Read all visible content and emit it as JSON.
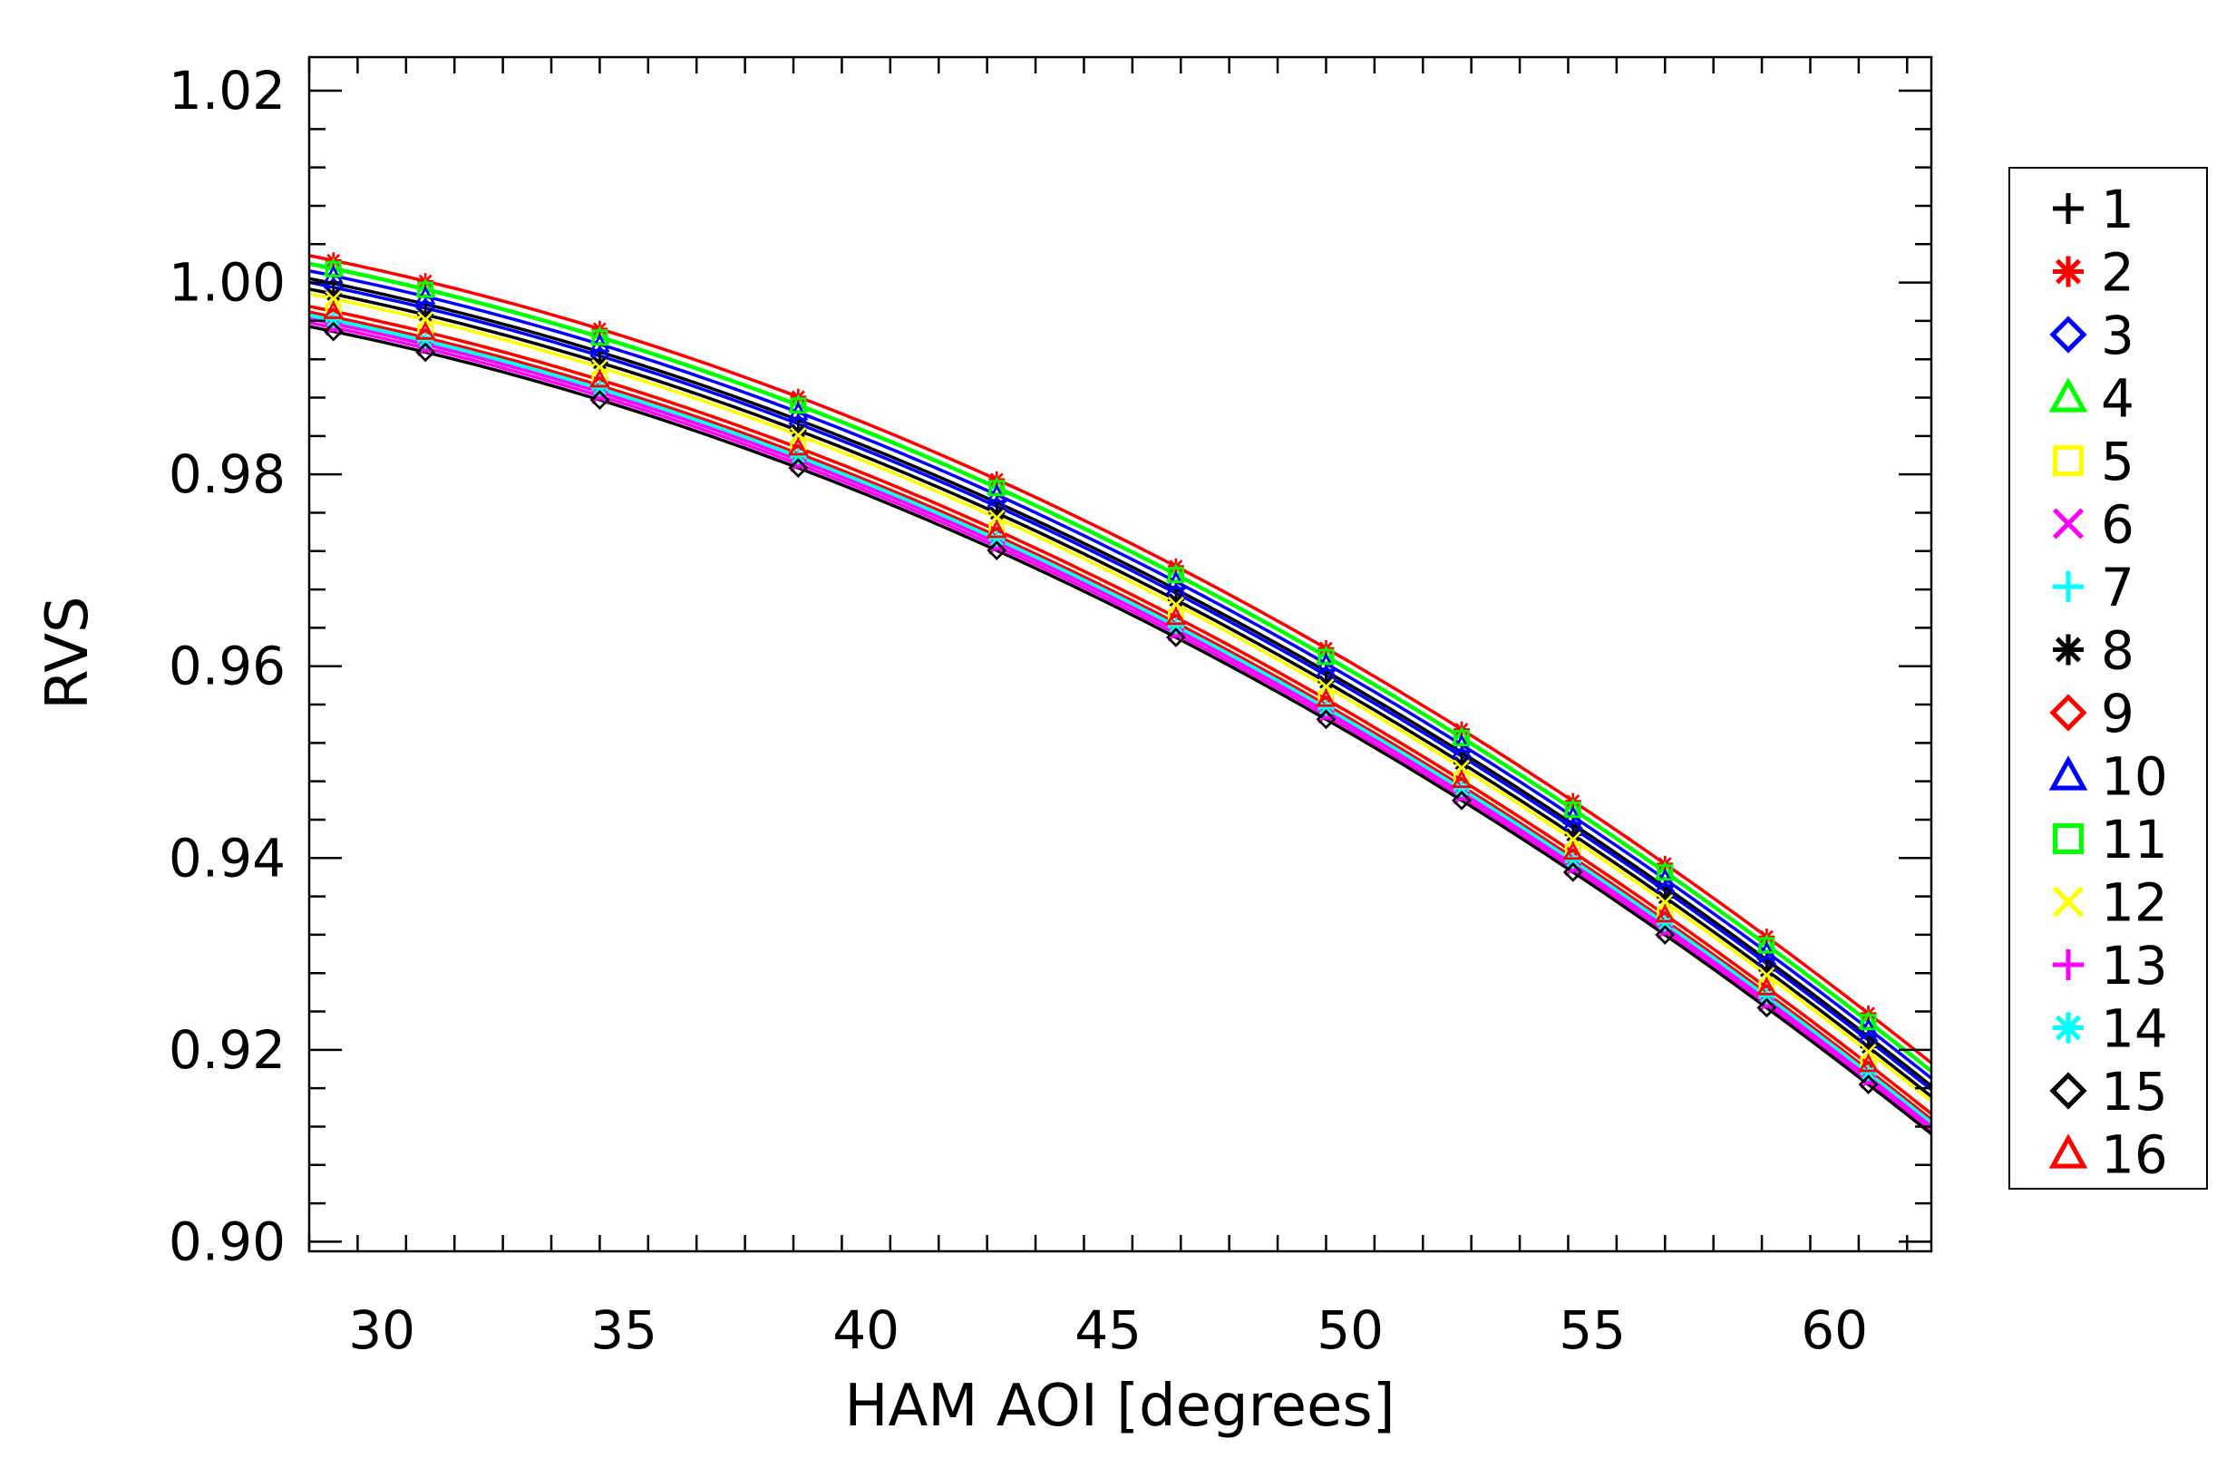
{
  "chart_data": {
    "type": "scatter",
    "title": "",
    "xlabel": "HAM AOI [degrees]",
    "ylabel": "RVS",
    "xlim": [
      28.5,
      62
    ],
    "ylim": [
      0.899,
      1.0235
    ],
    "xticks": [
      30,
      35,
      40,
      45,
      50,
      55,
      60
    ],
    "xtick_labels": [
      "30",
      "35",
      "40",
      "45",
      "50",
      "55",
      "60"
    ],
    "yticks": [
      0.9,
      0.92,
      0.94,
      0.96,
      0.98,
      1.0,
      1.02
    ],
    "ytick_labels": [
      "0.90",
      "0.92",
      "0.94",
      "0.96",
      "0.98",
      "1.00",
      "1.02"
    ],
    "legend_position": "right",
    "x": [
      29.0,
      30.9,
      34.5,
      38.6,
      42.7,
      46.4,
      49.5,
      52.3,
      54.6,
      56.5,
      58.6,
      60.7
    ],
    "series": [
      {
        "name": "1",
        "marker": "plus",
        "color": "#000000",
        "y0": 0.9999,
        "curve": "#000000"
      },
      {
        "name": "2",
        "marker": "asterisk",
        "color": "#ff0000",
        "y0": 1.0023,
        "curve": "#ff0000"
      },
      {
        "name": "3",
        "marker": "diamond",
        "color": "#0000ff",
        "y0": 0.9995,
        "curve": "#0000ff"
      },
      {
        "name": "4",
        "marker": "triangle",
        "color": "#00ff00",
        "y0": 1.0015,
        "curve": "#00ff00"
      },
      {
        "name": "5",
        "marker": "square",
        "color": "#ffff00",
        "y0": 0.997,
        "curve": "#ffff00"
      },
      {
        "name": "6",
        "marker": "x",
        "color": "#ff00ff",
        "y0": 0.9953,
        "curve": "#ff00ff"
      },
      {
        "name": "7",
        "marker": "plus",
        "color": "#00ffff",
        "y0": 0.9959,
        "curve": "#00ffff"
      },
      {
        "name": "8",
        "marker": "asterisk",
        "color": "#000000",
        "y0": 0.9988,
        "curve": "#000000"
      },
      {
        "name": "9",
        "marker": "diamond",
        "color": "#ff0000",
        "y0": 0.9964,
        "curve": "#ff0000"
      },
      {
        "name": "10",
        "marker": "triangle",
        "color": "#0000ff",
        "y0": 1.0007,
        "curve": "#0000ff"
      },
      {
        "name": "11",
        "marker": "square",
        "color": "#00ff00",
        "y0": 1.0014,
        "curve": "#00ff00"
      },
      {
        "name": "12",
        "marker": "x",
        "color": "#ffff00",
        "y0": 0.9983,
        "curve": "#ffff00"
      },
      {
        "name": "13",
        "marker": "plus",
        "color": "#ff00ff",
        "y0": 0.9957,
        "curve": "#ff00ff"
      },
      {
        "name": "14",
        "marker": "asterisk",
        "color": "#00ffff",
        "y0": 0.9961,
        "curve": "#00ffff"
      },
      {
        "name": "15",
        "marker": "diamond",
        "color": "#000000",
        "y0": 0.9949,
        "curve": "#000000"
      },
      {
        "name": "16",
        "marker": "triangle",
        "color": "#ff0000",
        "y0": 0.997,
        "curve": "#ff0000"
      }
    ],
    "model": {
      "form": "quadratic",
      "x_ref": 29.0,
      "a": 4.5e-05,
      "b": 0.00105
    }
  }
}
